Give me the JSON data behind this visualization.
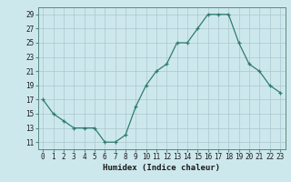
{
  "x": [
    0,
    1,
    2,
    3,
    4,
    5,
    6,
    7,
    8,
    9,
    10,
    11,
    12,
    13,
    14,
    15,
    16,
    17,
    18,
    19,
    20,
    21,
    22,
    23
  ],
  "y": [
    17,
    15,
    14,
    13,
    13,
    13,
    11,
    11,
    12,
    16,
    19,
    21,
    22,
    25,
    25,
    27,
    29,
    29,
    29,
    25,
    22,
    21,
    19,
    18
  ],
  "line_color": "#2e7d6e",
  "marker": "+",
  "bg_color": "#cde8ed",
  "grid_color": "#aac8ce",
  "xlabel": "Humidex (Indice chaleur)",
  "ylim": [
    10,
    30
  ],
  "yticks": [
    11,
    13,
    15,
    17,
    19,
    21,
    23,
    25,
    27,
    29
  ],
  "xticks": [
    0,
    1,
    2,
    3,
    4,
    5,
    6,
    7,
    8,
    9,
    10,
    11,
    12,
    13,
    14,
    15,
    16,
    17,
    18,
    19,
    20,
    21,
    22,
    23
  ],
  "xlim": [
    -0.5,
    23.5
  ],
  "label_fontsize": 6.5,
  "tick_fontsize": 5.5
}
